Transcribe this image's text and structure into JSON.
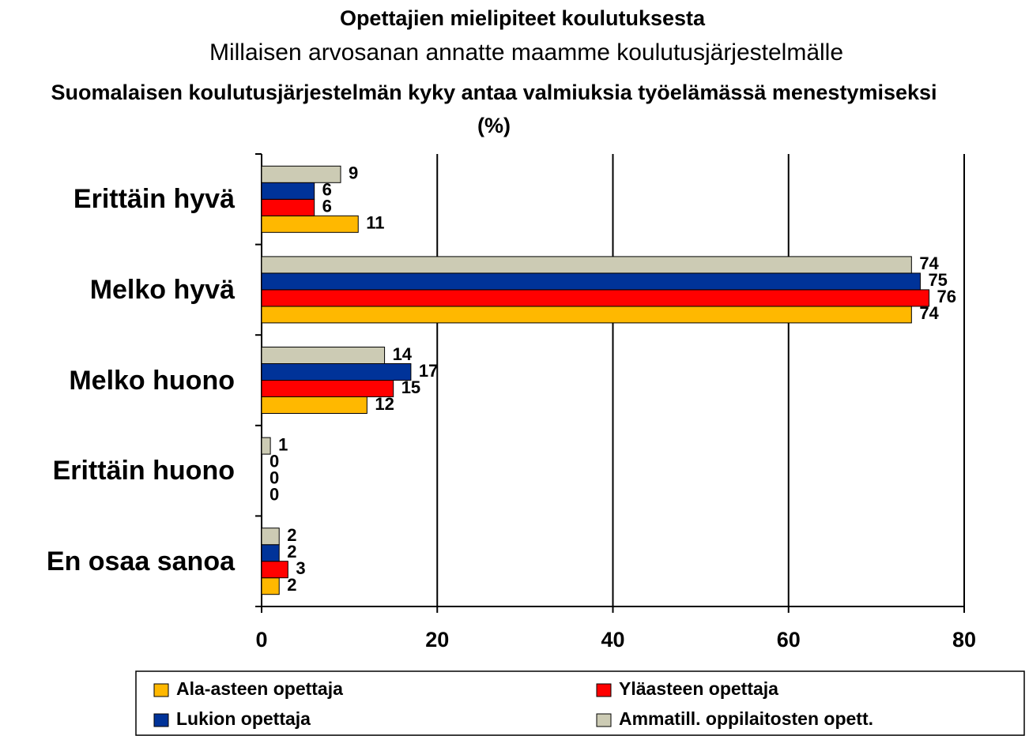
{
  "chart_data": {
    "type": "bar",
    "orientation": "horizontal",
    "title": "Opettajien mielipiteet koulutuksesta",
    "subtitle": "Millaisen arvosanan annatte maamme koulutusjärjestelmälle",
    "heading": "Suomalaisen koulutusjärjestelmän kyky antaa valmiuksia työelämässä menestymiseksi   (%)",
    "categories": [
      "Erittäin hyvä",
      "Melko hyvä",
      "Melko huono",
      "Erittäin huono",
      "En osaa sanoa"
    ],
    "series": [
      {
        "name": "Ala-asteen opettaja",
        "color": "#ffb800",
        "values": [
          11,
          74,
          12,
          0,
          2
        ]
      },
      {
        "name": "Yläasteen opettaja",
        "color": "#ff0000",
        "values": [
          6,
          76,
          15,
          0,
          3
        ]
      },
      {
        "name": "Lukion opettaja",
        "color": "#003399",
        "values": [
          6,
          75,
          17,
          0,
          2
        ]
      },
      {
        "name": "Ammatill. oppilaitosten opett.",
        "color": "#cccbb4",
        "values": [
          9,
          74,
          14,
          1,
          2
        ]
      }
    ],
    "xlim": [
      0,
      80
    ],
    "xticks": [
      0,
      20,
      40,
      60,
      80
    ],
    "grid": true,
    "legend": "bottom"
  }
}
